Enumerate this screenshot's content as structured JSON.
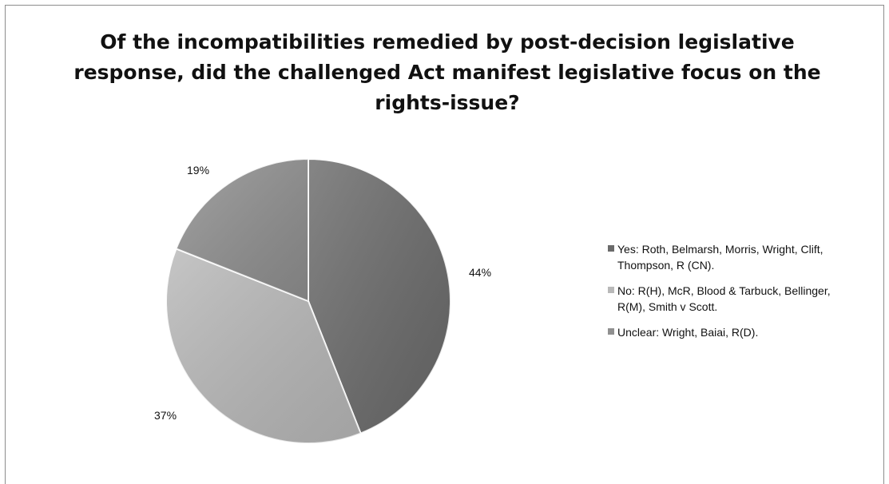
{
  "chart_data": {
    "type": "pie",
    "title_lines": [
      "Of the incompatibilities remedied by post-decision legislative",
      "response, did the challenged Act manifest legislative focus on the",
      "rights-issue?"
    ],
    "slices": [
      {
        "label_lines": [
          "Yes: Roth, Belmarsh, Morris, Wright, Clift,",
          "Thompson, R (CN)."
        ],
        "value": 44,
        "value_label": "44%",
        "color": "#6b6b6b"
      },
      {
        "label_lines": [
          "No: R(H), McR, Blood & Tarbuck, Bellinger,",
          "R(M), Smith v Scott."
        ],
        "value": 37,
        "value_label": "37%",
        "color": "#b9b9b9"
      },
      {
        "label_lines": [
          "Unclear: Wright, Baiai, R(D)."
        ],
        "value": 19,
        "value_label": "19%",
        "color": "#909090"
      }
    ],
    "legend_position": "right",
    "start_angle": "12 o'clock",
    "direction": "clockwise"
  }
}
